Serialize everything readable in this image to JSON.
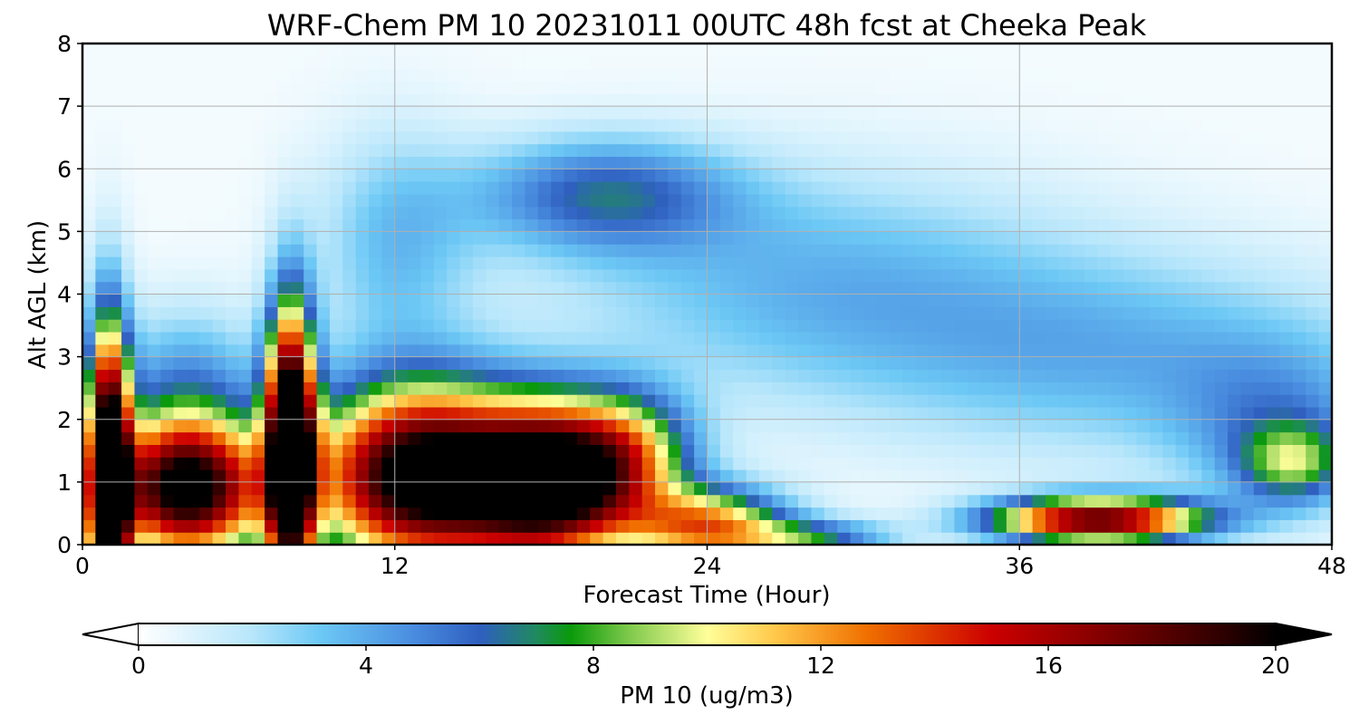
{
  "chart_data": {
    "type": "heatmap",
    "title": "WRF-Chem PM 10  20231011 00UTC 48h fcst at Cheeka Peak",
    "xlabel": "Forecast Time (Hour)",
    "ylabel": "Alt AGL (km)",
    "xlim": [
      0,
      48
    ],
    "ylim": [
      0,
      8
    ],
    "x_ticks": [
      "0",
      "12",
      "24",
      "36",
      "48"
    ],
    "y_ticks": [
      "0",
      "1",
      "2",
      "3",
      "4",
      "5",
      "6",
      "7",
      "8"
    ],
    "grid": true,
    "colorbar": {
      "label": "PM 10  (ug/m3)",
      "ticks": [
        "0",
        "4",
        "8",
        "12",
        "16",
        "20"
      ],
      "range": [
        0,
        20
      ],
      "extend": "both",
      "stops": [
        {
          "v": 0,
          "color": "#ffffff"
        },
        {
          "v": 2,
          "color": "#b7e6fb"
        },
        {
          "v": 3.2,
          "color": "#6cc8f5"
        },
        {
          "v": 4.8,
          "color": "#4a8ee0"
        },
        {
          "v": 6,
          "color": "#2f5fc0"
        },
        {
          "v": 7,
          "color": "#1f8a5e"
        },
        {
          "v": 7.6,
          "color": "#0a9a0a"
        },
        {
          "v": 8.6,
          "color": "#7cc84a"
        },
        {
          "v": 10,
          "color": "#ffff9a"
        },
        {
          "v": 11.2,
          "color": "#ffc84a"
        },
        {
          "v": 12.8,
          "color": "#f07000"
        },
        {
          "v": 15,
          "color": "#cc0000"
        },
        {
          "v": 17,
          "color": "#800000"
        },
        {
          "v": 19,
          "color": "#300000"
        },
        {
          "v": 20,
          "color": "#000000"
        }
      ]
    },
    "field": {
      "base": 0.3,
      "features": [
        {
          "x": 20,
          "y": 5.6,
          "sx": 5,
          "sy": 0.9,
          "v": 5.4
        },
        {
          "x": 28,
          "y": 4.2,
          "sx": 10,
          "sy": 1.8,
          "v": 3.2
        },
        {
          "x": 40,
          "y": 3.0,
          "sx": 10,
          "sy": 1.6,
          "v": 3.2
        },
        {
          "x": 12,
          "y": 4.8,
          "sx": 3,
          "sy": 1.8,
          "v": 3.0
        },
        {
          "x": 4,
          "y": 2.6,
          "sx": 3,
          "sy": 1.2,
          "v": 3.8
        },
        {
          "x": 46,
          "y": 1.8,
          "sx": 4,
          "sy": 1.3,
          "v": 3.5
        },
        {
          "x": 1,
          "y": 1.0,
          "sx": 0.8,
          "sy": 2.4,
          "v": 24
        },
        {
          "x": 4,
          "y": 0.9,
          "sx": 3,
          "sy": 1.1,
          "v": 21
        },
        {
          "x": 8,
          "y": 1.6,
          "sx": 0.9,
          "sy": 2.1,
          "v": 25
        },
        {
          "x": 13,
          "y": 1.1,
          "sx": 4,
          "sy": 1.4,
          "v": 22
        },
        {
          "x": 18,
          "y": 1.0,
          "sx": 3,
          "sy": 1.2,
          "v": 20
        },
        {
          "x": 21,
          "y": 1.4,
          "sx": 2.5,
          "sy": 1.0,
          "v": 9
        },
        {
          "x": 24,
          "y": 0.3,
          "sx": 3,
          "sy": 0.6,
          "v": 12
        },
        {
          "x": 28,
          "y": 0.1,
          "sx": 3,
          "sy": 0.3,
          "v": 6
        },
        {
          "x": 39,
          "y": 0.4,
          "sx": 4,
          "sy": 0.35,
          "v": 18
        },
        {
          "x": 46.5,
          "y": 1.3,
          "sx": 2,
          "sy": 0.6,
          "v": 6
        }
      ]
    }
  }
}
